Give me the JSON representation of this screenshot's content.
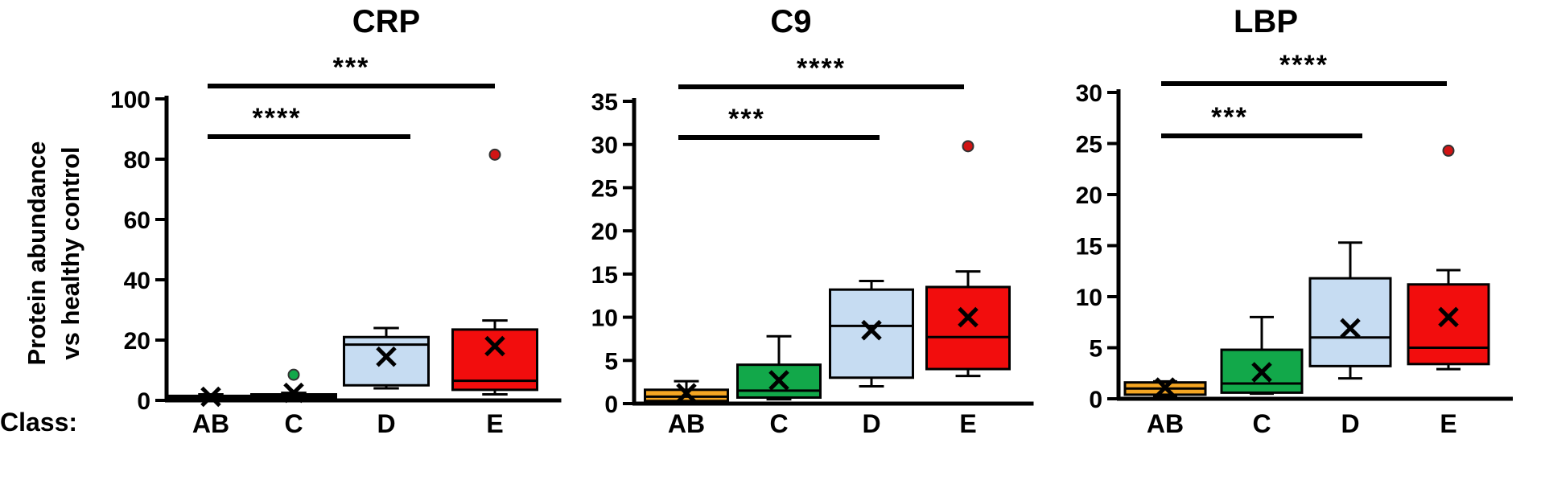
{
  "figure": {
    "ylabel_line1": "Protein abundance",
    "ylabel_line2": "vs healthy control",
    "class_label": "Class:"
  },
  "colors": {
    "AB": "#f5a623",
    "C": "#12a84a",
    "D": "#c6dcf2",
    "E": "#f20d0d",
    "outlier_C": "#12a84a",
    "outlier_E": "#d11414"
  },
  "chart_data": [
    {
      "type": "box",
      "title": "CRP",
      "categories": [
        "AB",
        "C",
        "D",
        "E"
      ],
      "yticks": [
        0,
        20,
        40,
        60,
        80,
        100
      ],
      "ylim": [
        0,
        100
      ],
      "boxes": [
        {
          "category": "AB",
          "whisker_low": 0.5,
          "q1": 0.8,
          "median": 1.0,
          "q3": 1.5,
          "whisker_high": 2.0,
          "mean": 1.2,
          "outliers": []
        },
        {
          "category": "C",
          "whisker_low": 0.5,
          "q1": 0.8,
          "median": 1.2,
          "q3": 2.0,
          "whisker_high": 2.5,
          "mean": 2.5,
          "outliers": [
            8.5
          ]
        },
        {
          "category": "D",
          "whisker_low": 4,
          "q1": 5,
          "median": 18.5,
          "q3": 21,
          "whisker_high": 24,
          "mean": 14.5,
          "outliers": []
        },
        {
          "category": "E",
          "whisker_low": 2,
          "q1": 3.5,
          "median": 6.5,
          "q3": 23.5,
          "whisker_high": 26.5,
          "mean": 18,
          "outliers": [
            81.5
          ]
        }
      ],
      "significance": [
        {
          "from": "AB",
          "to": "E",
          "label": "***"
        },
        {
          "from": "AB",
          "to": "D",
          "label": "****"
        }
      ]
    },
    {
      "type": "box",
      "title": "C9",
      "categories": [
        "AB",
        "C",
        "D",
        "E"
      ],
      "yticks": [
        0,
        5,
        10,
        15,
        20,
        25,
        30,
        35
      ],
      "ylim": [
        0,
        35
      ],
      "boxes": [
        {
          "category": "AB",
          "whisker_low": 0.2,
          "q1": 0.3,
          "median": 0.8,
          "q3": 1.6,
          "whisker_high": 2.6,
          "mean": 1.2,
          "outliers": []
        },
        {
          "category": "C",
          "whisker_low": 0.5,
          "q1": 0.7,
          "median": 1.5,
          "q3": 4.5,
          "whisker_high": 7.8,
          "mean": 2.7,
          "outliers": []
        },
        {
          "category": "D",
          "whisker_low": 2,
          "q1": 3,
          "median": 9,
          "q3": 13.2,
          "whisker_high": 14.2,
          "mean": 8.5,
          "outliers": []
        },
        {
          "category": "E",
          "whisker_low": 3.2,
          "q1": 4,
          "median": 7.7,
          "q3": 13.5,
          "whisker_high": 15.3,
          "mean": 10,
          "outliers": [
            29.8
          ]
        }
      ],
      "significance": [
        {
          "from": "AB",
          "to": "E",
          "label": "****"
        },
        {
          "from": "AB",
          "to": "D",
          "label": "***"
        }
      ]
    },
    {
      "type": "box",
      "title": "LBP",
      "categories": [
        "AB",
        "C",
        "D",
        "E"
      ],
      "yticks": [
        0,
        5,
        10,
        15,
        20,
        25,
        30
      ],
      "ylim": [
        0,
        30
      ],
      "boxes": [
        {
          "category": "AB",
          "whisker_low": 0.3,
          "q1": 0.4,
          "median": 1.0,
          "q3": 1.6,
          "whisker_high": 1.7,
          "mean": 1.1,
          "outliers": []
        },
        {
          "category": "C",
          "whisker_low": 0.5,
          "q1": 0.6,
          "median": 1.5,
          "q3": 4.8,
          "whisker_high": 8.0,
          "mean": 2.6,
          "outliers": []
        },
        {
          "category": "D",
          "whisker_low": 2,
          "q1": 3.2,
          "median": 6,
          "q3": 11.8,
          "whisker_high": 15.3,
          "mean": 6.9,
          "outliers": []
        },
        {
          "category": "E",
          "whisker_low": 2.9,
          "q1": 3.4,
          "median": 5,
          "q3": 11.2,
          "whisker_high": 12.6,
          "mean": 8,
          "outliers": [
            24.3
          ]
        }
      ],
      "significance": [
        {
          "from": "AB",
          "to": "E",
          "label": "****"
        },
        {
          "from": "AB",
          "to": "D",
          "label": "***"
        }
      ]
    }
  ]
}
